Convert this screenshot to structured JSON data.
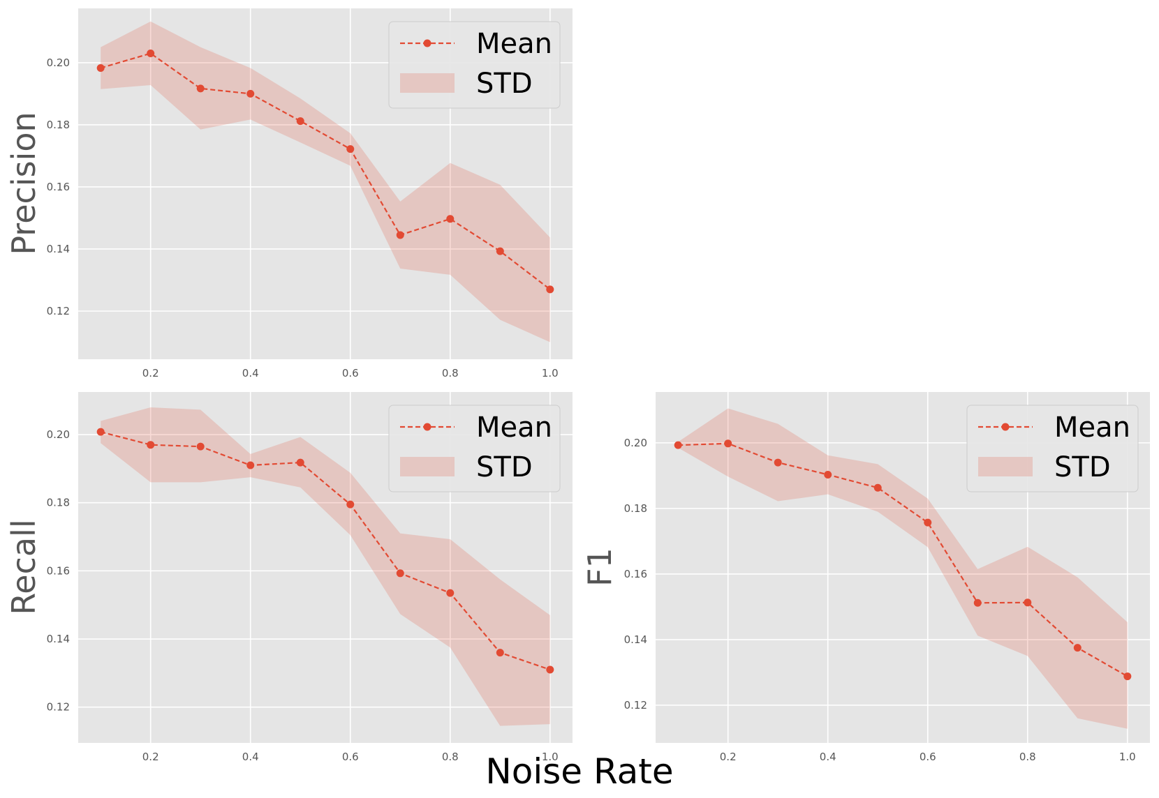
{
  "colors": {
    "line": "#e24a33",
    "band": "#e24a33",
    "axes_bg": "#e5e5e5",
    "grid": "#ffffff",
    "tick_text": "#555555"
  },
  "figure": {
    "xlabel": "Noise Rate"
  },
  "chart_data": [
    {
      "type": "line",
      "ylabel": "Precision",
      "xlabel": "",
      "grid": true,
      "legend_position": "top-right",
      "x": [
        0.1,
        0.2,
        0.3,
        0.4,
        0.5,
        0.6,
        0.7,
        0.8,
        0.9,
        1.0
      ],
      "xlim": [
        0.055,
        1.045
      ],
      "ylim": [
        0.1045,
        0.2175
      ],
      "xticks": [
        0.2,
        0.4,
        0.6,
        0.8,
        1.0
      ],
      "xtick_labels": [
        "0.2",
        "0.4",
        "0.6",
        "0.8",
        "1.0"
      ],
      "yticks": [
        0.12,
        0.14,
        0.16,
        0.18,
        0.2
      ],
      "ytick_labels": [
        "0.12",
        "0.14",
        "0.16",
        "0.18",
        "0.20"
      ],
      "series": [
        {
          "name": "Mean",
          "values": [
            0.1983,
            0.203,
            0.1917,
            0.19,
            0.1812,
            0.1722,
            0.1445,
            0.1497,
            0.1393,
            0.127
          ]
        },
        {
          "name": "STD",
          "lower": [
            0.1915,
            0.1928,
            0.1785,
            0.1817,
            0.1743,
            0.1668,
            0.1337,
            0.1317,
            0.1172,
            0.11
          ],
          "upper": [
            0.205,
            0.2133,
            0.205,
            0.1983,
            0.1885,
            0.1773,
            0.1553,
            0.1677,
            0.1607,
            0.1437
          ]
        }
      ]
    },
    {
      "type": "line",
      "ylabel": "Recall",
      "xlabel": "",
      "grid": true,
      "legend_position": "top-right",
      "x": [
        0.1,
        0.2,
        0.3,
        0.4,
        0.5,
        0.6,
        0.7,
        0.8,
        0.9,
        1.0
      ],
      "xlim": [
        0.055,
        1.045
      ],
      "ylim": [
        0.1095,
        0.2125
      ],
      "xticks": [
        0.2,
        0.4,
        0.6,
        0.8,
        1.0
      ],
      "xtick_labels": [
        "0.2",
        "0.4",
        "0.6",
        "0.8",
        "1.0"
      ],
      "yticks": [
        0.12,
        0.14,
        0.16,
        0.18,
        0.2
      ],
      "ytick_labels": [
        "0.12",
        "0.14",
        "0.16",
        "0.18",
        "0.20"
      ],
      "series": [
        {
          "name": "Mean",
          "values": [
            0.2008,
            0.197,
            0.1965,
            0.191,
            0.1918,
            0.1795,
            0.1593,
            0.1535,
            0.136,
            0.131
          ]
        },
        {
          "name": "STD",
          "lower": [
            0.1975,
            0.186,
            0.186,
            0.1875,
            0.1845,
            0.1705,
            0.1473,
            0.1375,
            0.1145,
            0.115
          ],
          "upper": [
            0.204,
            0.208,
            0.2073,
            0.1943,
            0.1993,
            0.1888,
            0.171,
            0.1693,
            0.1575,
            0.147
          ]
        }
      ]
    },
    {
      "type": "line",
      "ylabel": "F1",
      "xlabel": "",
      "grid": true,
      "legend_position": "top-right",
      "x": [
        0.1,
        0.2,
        0.3,
        0.4,
        0.5,
        0.6,
        0.7,
        0.8,
        0.9,
        1.0
      ],
      "xlim": [
        0.055,
        1.045
      ],
      "ylim": [
        0.1085,
        0.2155
      ],
      "xticks": [
        0.2,
        0.4,
        0.6,
        0.8,
        1.0
      ],
      "xtick_labels": [
        "0.2",
        "0.4",
        "0.6",
        "0.8",
        "1.0"
      ],
      "yticks": [
        0.12,
        0.14,
        0.16,
        0.18,
        0.2
      ],
      "ytick_labels": [
        "0.12",
        "0.14",
        "0.16",
        "0.18",
        "0.20"
      ],
      "series": [
        {
          "name": "Mean",
          "values": [
            0.1993,
            0.1998,
            0.194,
            0.1903,
            0.1863,
            0.1757,
            0.1512,
            0.1513,
            0.1375,
            0.1288
          ]
        },
        {
          "name": "STD",
          "lower": [
            0.1985,
            0.1897,
            0.1822,
            0.1843,
            0.179,
            0.1682,
            0.1412,
            0.135,
            0.116,
            0.1128
          ],
          "upper": [
            0.2003,
            0.2105,
            0.2058,
            0.1962,
            0.1935,
            0.183,
            0.1615,
            0.1683,
            0.159,
            0.1453
          ]
        }
      ]
    }
  ]
}
